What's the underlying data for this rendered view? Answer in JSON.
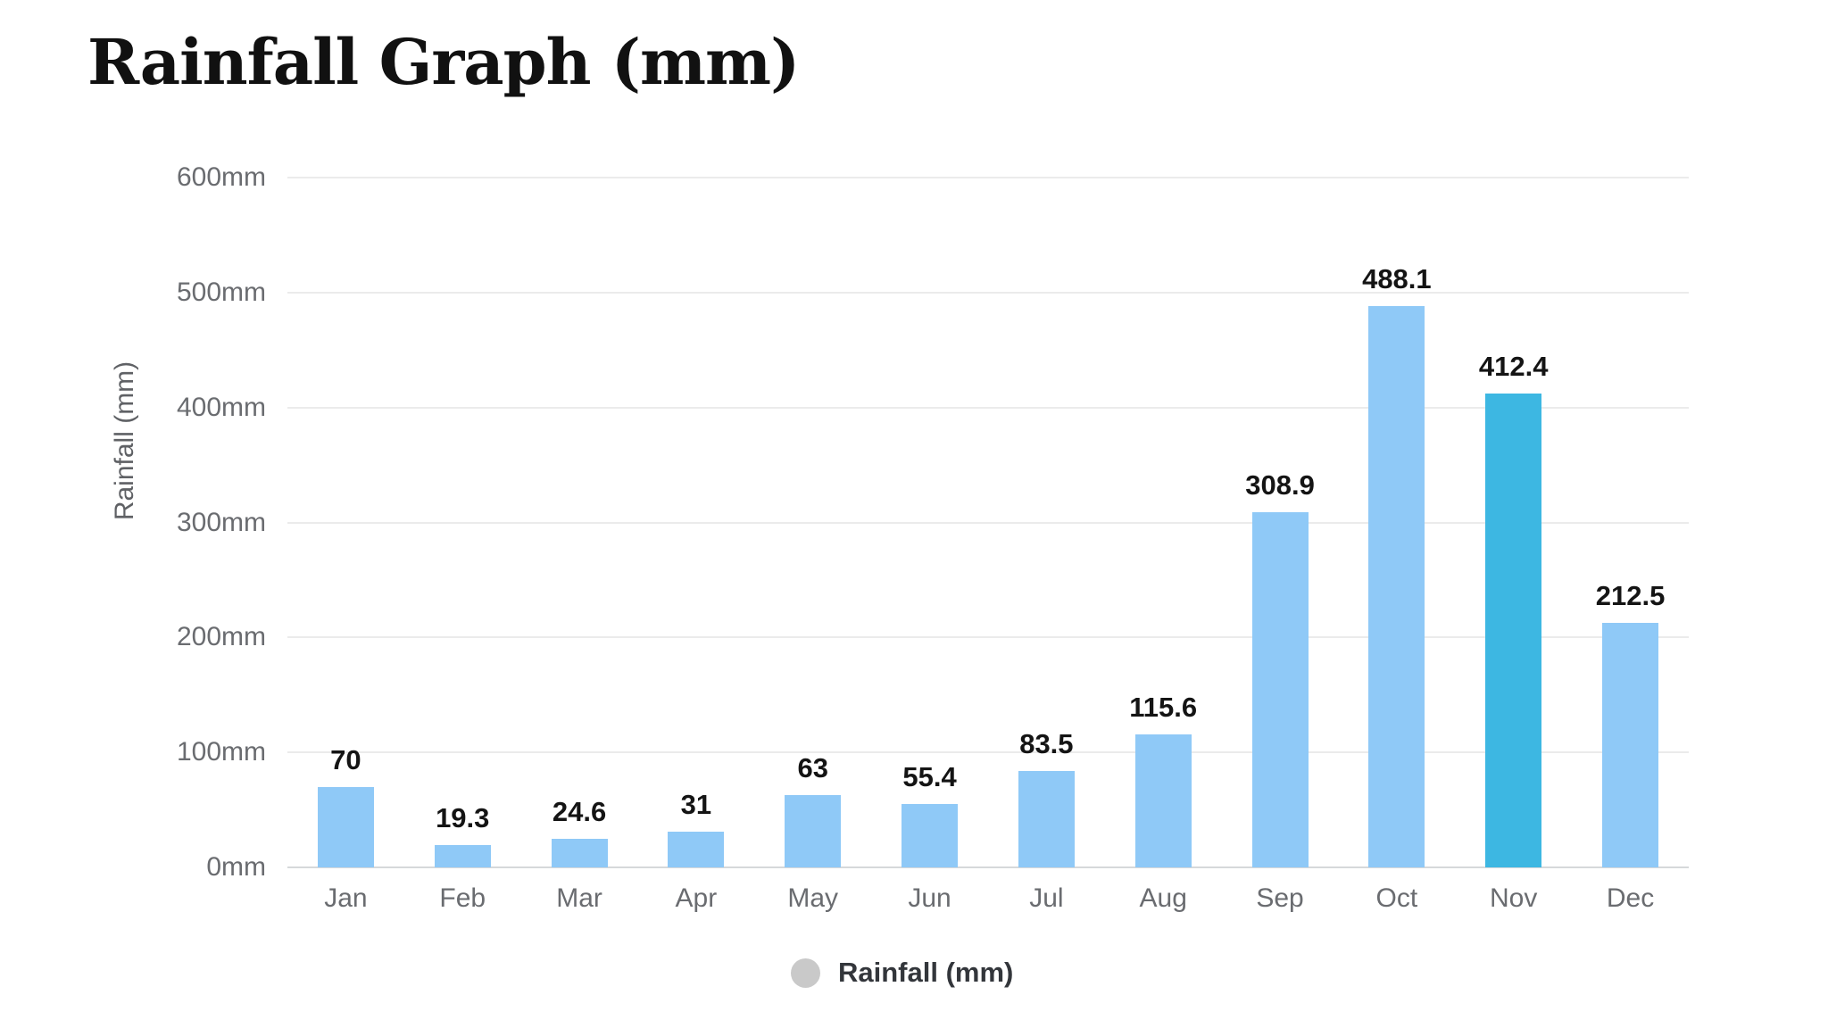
{
  "title": "Rainfall Graph (mm)",
  "chart_data": {
    "type": "bar",
    "title": "Rainfall Graph (mm)",
    "categories": [
      "Jan",
      "Feb",
      "Mar",
      "Apr",
      "May",
      "Jun",
      "Jul",
      "Aug",
      "Sep",
      "Oct",
      "Nov",
      "Dec"
    ],
    "series": [
      {
        "name": "Rainfall (mm)",
        "values": [
          70,
          19.3,
          24.6,
          31,
          63,
          55.4,
          83.5,
          115.6,
          308.9,
          488.1,
          412.4,
          212.5
        ]
      }
    ],
    "data_labels": [
      "70",
      "19.3",
      "24.6",
      "31",
      "63",
      "55.4",
      "83.5",
      "115.6",
      "308.9",
      "488.1",
      "412.4",
      "212.5"
    ],
    "highlight_index": 10,
    "highlighted_category": "Nov",
    "xlabel": "",
    "ylabel": "Rainfall (mm)",
    "ylim": [
      0,
      600
    ],
    "y_tick_step": 100,
    "y_tick_labels": [
      "0mm",
      "100mm",
      "200mm",
      "300mm",
      "400mm",
      "500mm",
      "600mm"
    ],
    "grid": true,
    "legend": {
      "label": "Rainfall (mm)",
      "position": "bottom"
    },
    "colors": {
      "bar": "#8fc9f7",
      "bar_highlight": "#3db7e2",
      "gridline": "#ebebeb",
      "axis_line": "#d6d8da",
      "tick_label": "#6a6c70",
      "data_label": "#141414",
      "legend_marker": "#c9c9c9",
      "title": "#111111"
    }
  }
}
